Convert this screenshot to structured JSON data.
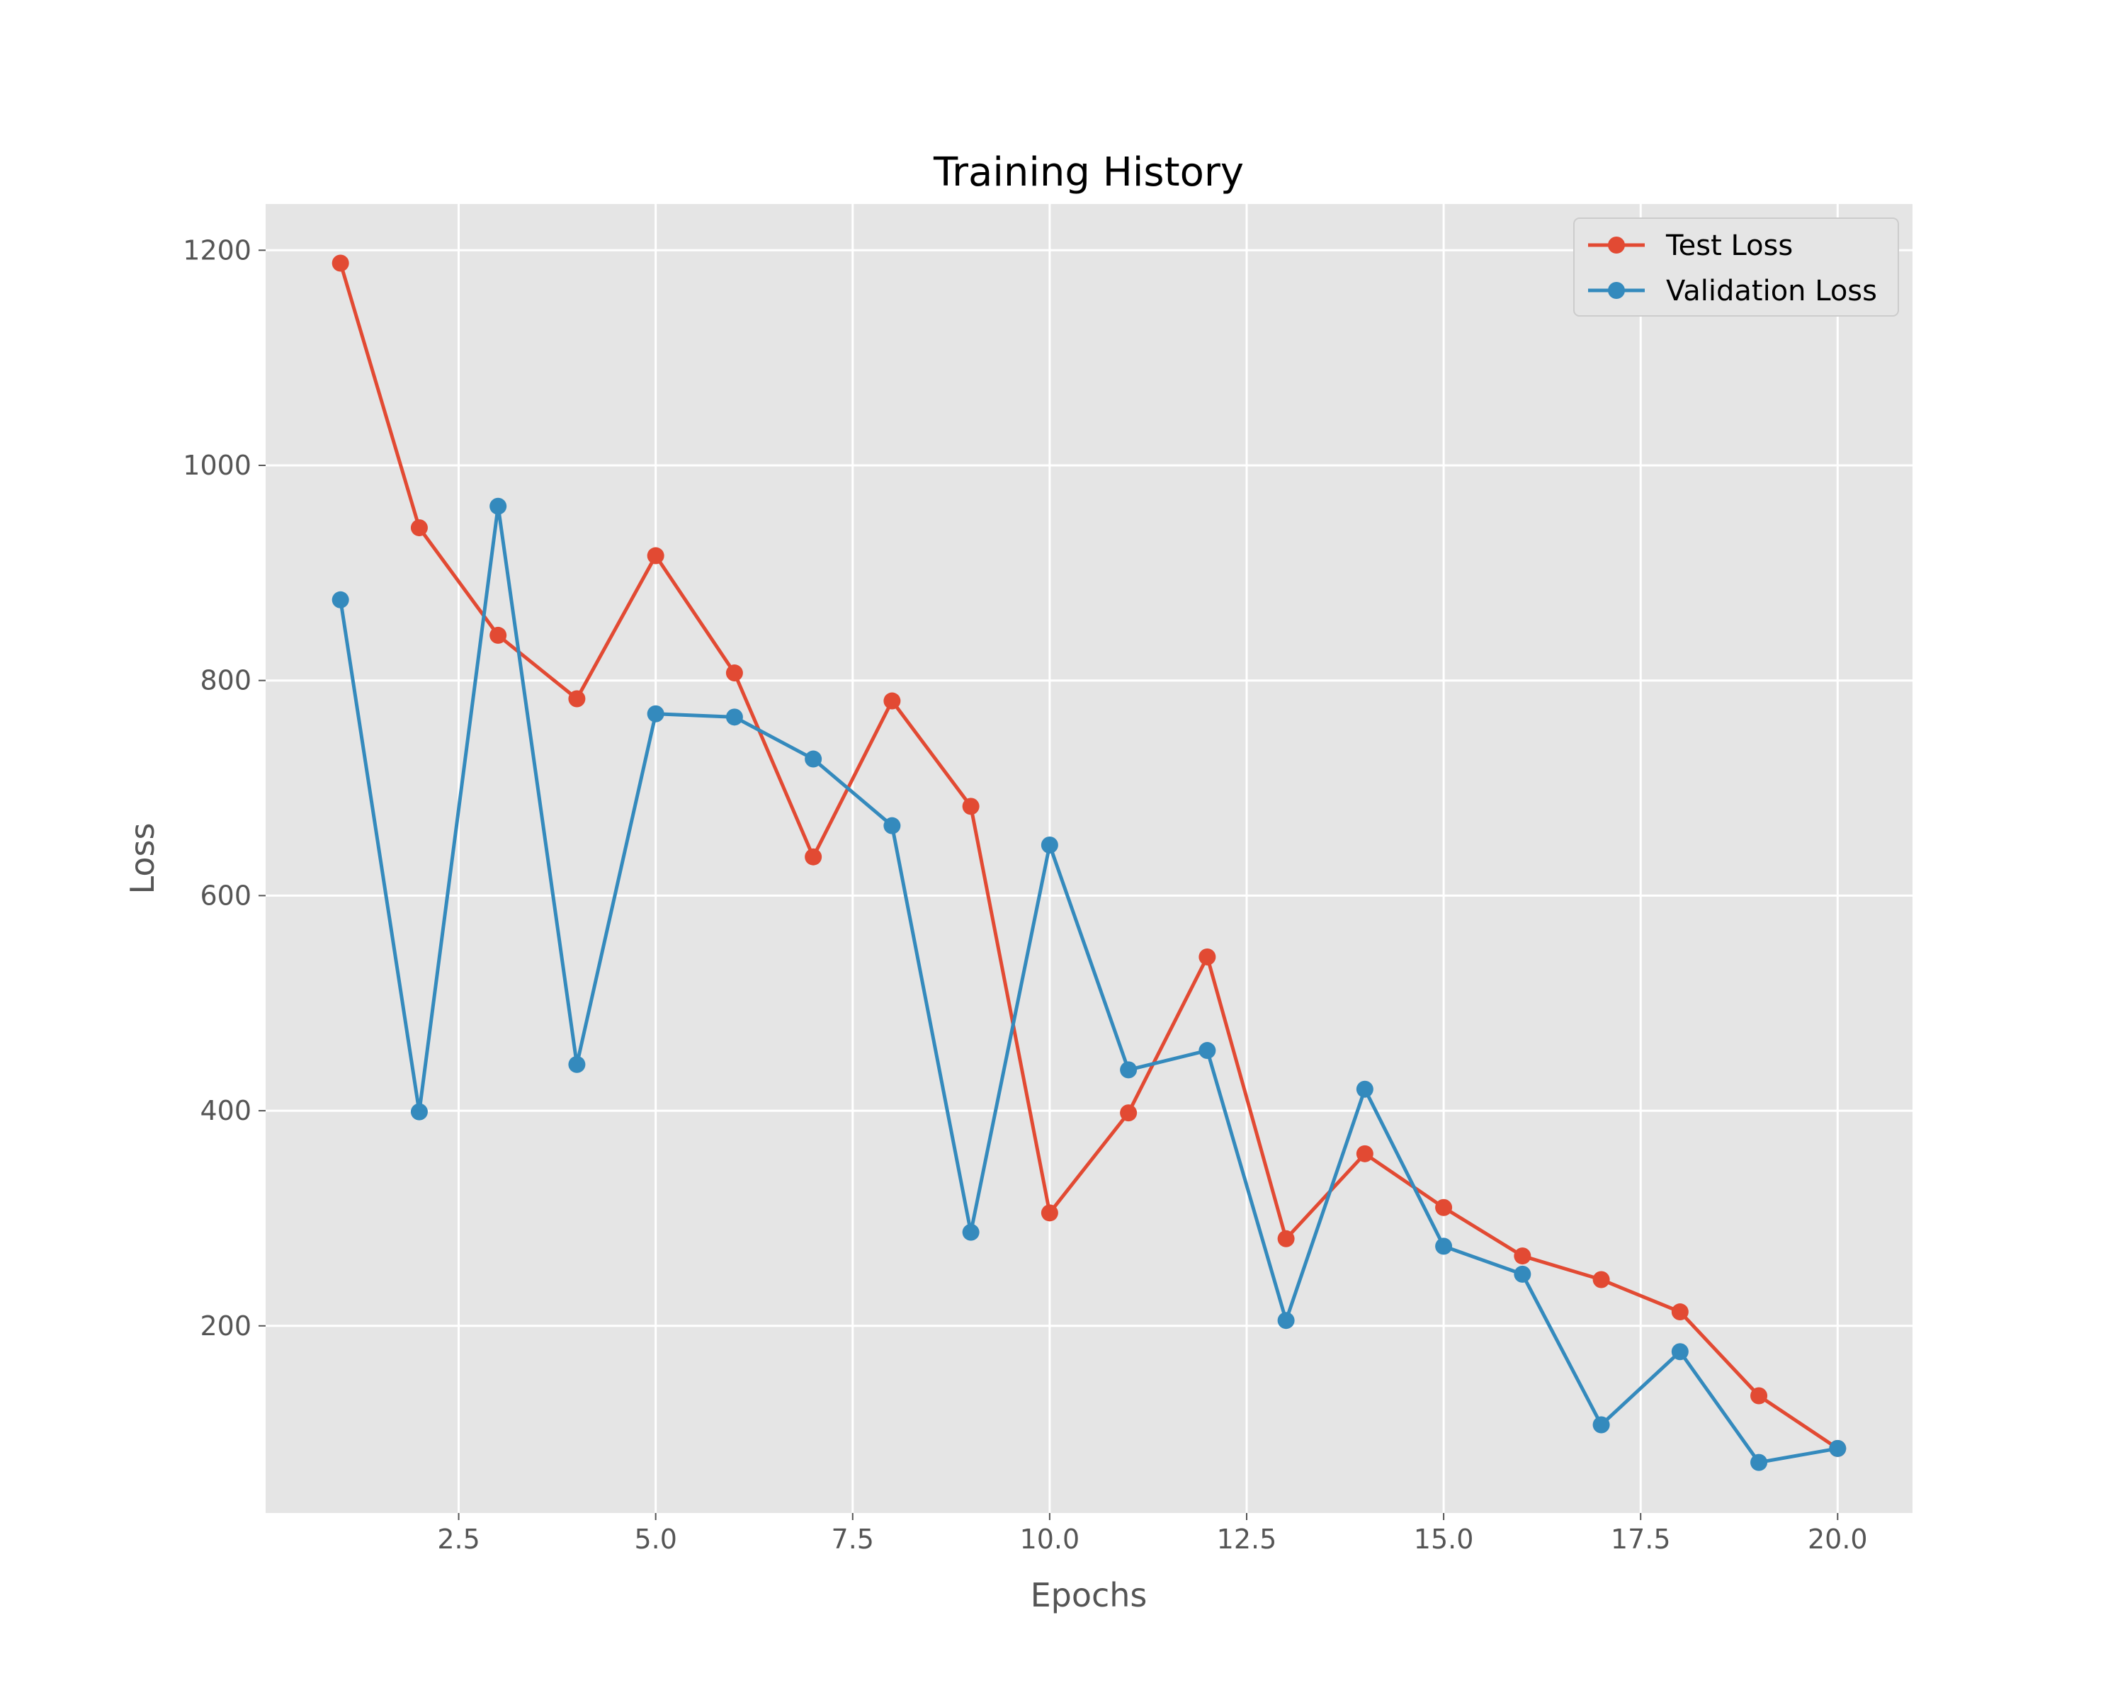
{
  "chart_data": {
    "type": "line",
    "title": "Training History",
    "xlabel": "Epochs",
    "ylabel": "Loss",
    "xlim": [
      0.05,
      20.95
    ],
    "ylim": [
      26,
      1243
    ],
    "x_ticks": [
      2.5,
      5.0,
      7.5,
      10.0,
      12.5,
      15.0,
      17.5,
      20.0
    ],
    "x_tick_labels": [
      "2.5",
      "5.0",
      "7.5",
      "10.0",
      "12.5",
      "15.0",
      "17.5",
      "20.0"
    ],
    "y_ticks": [
      200,
      400,
      600,
      800,
      1000,
      1200
    ],
    "y_tick_labels": [
      "200",
      "400",
      "600",
      "800",
      "1000",
      "1200"
    ],
    "grid": true,
    "legend_position": "top-right",
    "background": "#e5e5e5",
    "x": [
      1,
      2,
      3,
      4,
      5,
      6,
      7,
      8,
      9,
      10,
      11,
      12,
      13,
      14,
      15,
      16,
      17,
      18,
      19,
      20
    ],
    "series": [
      {
        "name": "Test Loss",
        "color": "#e24a33",
        "marker": "circle",
        "values": [
          1188,
          942,
          842,
          783,
          916,
          807,
          636,
          781,
          683,
          305,
          398,
          543,
          281,
          360,
          310,
          265,
          243,
          213,
          135,
          86
        ]
      },
      {
        "name": "Validation Loss",
        "color": "#348abd",
        "marker": "circle",
        "values": [
          875,
          399,
          962,
          443,
          769,
          766,
          727,
          665,
          287,
          647,
          438,
          456,
          205,
          420,
          274,
          248,
          108,
          176,
          73,
          86
        ]
      }
    ]
  }
}
